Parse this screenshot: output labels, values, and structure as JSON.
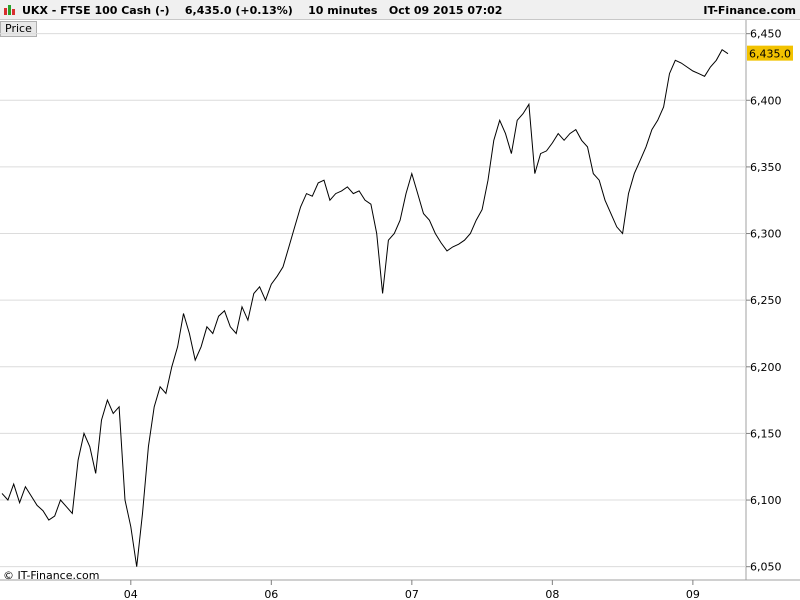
{
  "header": {
    "title": "UKX - FTSE 100 Cash (-)    6,435.0 (+0.13%)    10 minutes   Oct 09 2015 07:02",
    "brand": "IT-Finance.com"
  },
  "price_tab": "Price",
  "copyright": "© IT-Finance.com",
  "current_price_label": "6,435.0",
  "colors": {
    "line": "#000000",
    "grid": "#dcdcdc",
    "price_tag": "#f2c200",
    "header_bg": "#f0f0f0"
  },
  "chart_data": {
    "type": "line",
    "ylim": [
      6040,
      6455
    ],
    "y_ticks": [
      "6,050",
      "6,100",
      "6,150",
      "6,200",
      "6,250",
      "6,300",
      "6,350",
      "6,400",
      "6,450"
    ],
    "x_ticks": [
      "04",
      "06",
      "07",
      "08",
      "09"
    ],
    "current_value": 6435,
    "series": [
      {
        "values": [
          6105,
          6100,
          6112,
          6098,
          6110,
          6103,
          6096,
          6092,
          6085,
          6088,
          6100,
          6095,
          6090,
          6130,
          6150,
          6140,
          6120,
          6160,
          6175,
          6165,
          6170,
          6100,
          6080,
          6050,
          6090,
          6140,
          6170,
          6185,
          6180,
          6200,
          6215,
          6240,
          6225,
          6205,
          6215,
          6230,
          6225,
          6238,
          6242,
          6230,
          6225,
          6245,
          6235,
          6255,
          6260,
          6250,
          6262,
          6268,
          6275,
          6290,
          6305,
          6320,
          6330,
          6328,
          6338,
          6340,
          6325,
          6330,
          6332,
          6335,
          6330,
          6332,
          6325,
          6322,
          6300,
          6255,
          6295,
          6300,
          6310,
          6330,
          6345,
          6330,
          6315,
          6310,
          6300,
          6293,
          6287,
          6290,
          6292,
          6295,
          6300,
          6310,
          6318,
          6340,
          6370,
          6385,
          6375,
          6360,
          6385,
          6390,
          6397,
          6345,
          6360,
          6362,
          6368,
          6375,
          6370,
          6375,
          6378,
          6370,
          6365,
          6345,
          6340,
          6325,
          6315,
          6305,
          6300,
          6330,
          6345,
          6355,
          6365,
          6378,
          6385,
          6395,
          6420,
          6430,
          6428,
          6425,
          6422,
          6420,
          6418,
          6425,
          6430,
          6438,
          6435
        ]
      }
    ]
  }
}
